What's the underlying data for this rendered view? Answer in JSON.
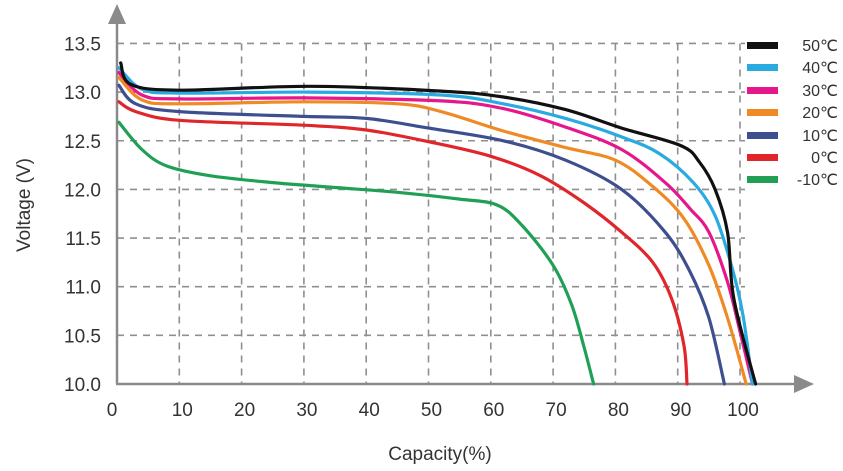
{
  "chart_data": {
    "type": "line",
    "title": "",
    "xlabel": "Capacity(%)",
    "ylabel": "Voltage (V)",
    "xlim": [
      0,
      100
    ],
    "ylim": [
      10.0,
      13.5
    ],
    "grid": true,
    "legend_position": "top-right",
    "x_ticks": [
      "0",
      "10",
      "20",
      "30",
      "40",
      "50",
      "60",
      "70",
      "80",
      "90",
      "100"
    ],
    "x_tick_values": [
      0,
      10,
      20,
      30,
      40,
      50,
      60,
      70,
      80,
      90,
      100
    ],
    "y_ticks": [
      "10.0",
      "10.5",
      "11.0",
      "11.5",
      "12.0",
      "12.5",
      "13.0",
      "13.5"
    ],
    "y_tick_values": [
      10.0,
      10.5,
      11.0,
      11.5,
      12.0,
      12.5,
      13.0,
      13.5
    ],
    "series": [
      {
        "name": "50℃",
        "color": "#111111",
        "points": [
          [
            0.6,
            13.3
          ],
          [
            2.2,
            13.08
          ],
          [
            10,
            13.02
          ],
          [
            31,
            13.06
          ],
          [
            52,
            13.01
          ],
          [
            62,
            12.95
          ],
          [
            72,
            12.82
          ],
          [
            81,
            12.63
          ],
          [
            90.5,
            12.45
          ],
          [
            93.5,
            12.28
          ],
          [
            96,
            12.0
          ],
          [
            98,
            11.56
          ],
          [
            99,
            10.88
          ],
          [
            102.5,
            10.0
          ]
        ]
      },
      {
        "name": "40℃",
        "color": "#29abe2",
        "points": [
          [
            0.3,
            13.25
          ],
          [
            4,
            13.03
          ],
          [
            10,
            12.99
          ],
          [
            31,
            13.0
          ],
          [
            52,
            12.97
          ],
          [
            62,
            12.88
          ],
          [
            72,
            12.73
          ],
          [
            81,
            12.54
          ],
          [
            87,
            12.37
          ],
          [
            92.5,
            12.07
          ],
          [
            96,
            11.73
          ],
          [
            98.7,
            11.2
          ],
          [
            100.5,
            10.7
          ],
          [
            102,
            10.0
          ]
        ]
      },
      {
        "name": "30℃",
        "color": "#e5178a",
        "points": [
          [
            0.3,
            13.2
          ],
          [
            4,
            12.97
          ],
          [
            10,
            12.93
          ],
          [
            30,
            12.94
          ],
          [
            52,
            12.91
          ],
          [
            62,
            12.83
          ],
          [
            72,
            12.64
          ],
          [
            81,
            12.41
          ],
          [
            88,
            12.07
          ],
          [
            92,
            11.8
          ],
          [
            95,
            11.56
          ],
          [
            98,
            11.05
          ],
          [
            100,
            10.54
          ],
          [
            102,
            10.0
          ]
        ]
      },
      {
        "name": "20℃",
        "color": "#f08a24",
        "points": [
          [
            0.3,
            13.15
          ],
          [
            4,
            12.92
          ],
          [
            10,
            12.88
          ],
          [
            30,
            12.9
          ],
          [
            45,
            12.88
          ],
          [
            52,
            12.8
          ],
          [
            62,
            12.6
          ],
          [
            72,
            12.43
          ],
          [
            80,
            12.3
          ],
          [
            86,
            12.03
          ],
          [
            91,
            11.7
          ],
          [
            95,
            11.22
          ],
          [
            98,
            10.68
          ],
          [
            101,
            10.0
          ]
        ]
      },
      {
        "name": "10℃",
        "color": "#3d4f8f",
        "points": [
          [
            0.3,
            13.07
          ],
          [
            3,
            12.88
          ],
          [
            10,
            12.8
          ],
          [
            30,
            12.75
          ],
          [
            40,
            12.73
          ],
          [
            50,
            12.63
          ],
          [
            62,
            12.5
          ],
          [
            72,
            12.3
          ],
          [
            81,
            12.0
          ],
          [
            88,
            11.56
          ],
          [
            92,
            11.15
          ],
          [
            95,
            10.68
          ],
          [
            97.5,
            10.0
          ]
        ]
      },
      {
        "name": "0℃",
        "color": "#e0262b",
        "points": [
          [
            0.3,
            12.9
          ],
          [
            3,
            12.8
          ],
          [
            10,
            12.71
          ],
          [
            30,
            12.66
          ],
          [
            40,
            12.61
          ],
          [
            50,
            12.49
          ],
          [
            60,
            12.34
          ],
          [
            68,
            12.14
          ],
          [
            75,
            11.86
          ],
          [
            81,
            11.56
          ],
          [
            86,
            11.25
          ],
          [
            89,
            10.88
          ],
          [
            91,
            10.4
          ],
          [
            91.5,
            10.0
          ]
        ]
      },
      {
        "name": "-10℃",
        "color": "#1fa055",
        "points": [
          [
            0.3,
            12.69
          ],
          [
            4,
            12.41
          ],
          [
            8,
            12.24
          ],
          [
            15,
            12.14
          ],
          [
            25,
            12.07
          ],
          [
            35,
            12.02
          ],
          [
            45,
            11.97
          ],
          [
            55,
            11.9
          ],
          [
            61,
            11.84
          ],
          [
            65,
            11.63
          ],
          [
            70,
            11.22
          ],
          [
            73,
            10.81
          ],
          [
            75,
            10.37
          ],
          [
            76.5,
            10.0
          ]
        ]
      }
    ]
  }
}
